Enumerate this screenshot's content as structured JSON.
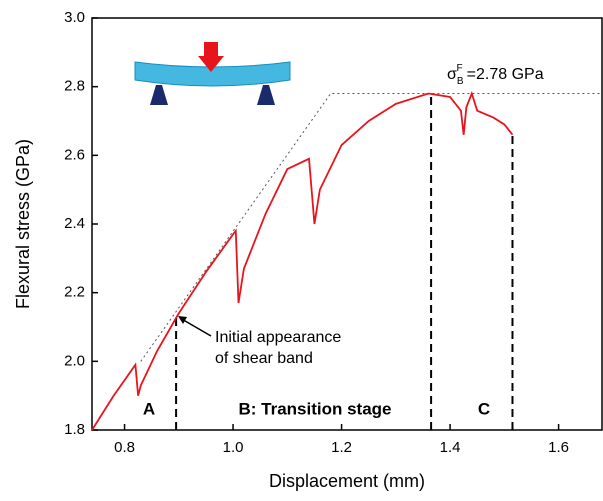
{
  "chart_data": {
    "type": "line",
    "xlabel": "Displacement (mm)",
    "ylabel": "Flexural stress (GPa)",
    "xlim": [
      0.74,
      1.68
    ],
    "ylim": [
      1.8,
      3.0
    ],
    "xticks": [
      {
        "value": 0.8,
        "label": "0.8"
      },
      {
        "value": 1.0,
        "label": "1.0"
      },
      {
        "value": 1.2,
        "label": "1.2"
      },
      {
        "value": 1.4,
        "label": "1.4"
      },
      {
        "value": 1.6,
        "label": "1.6"
      }
    ],
    "yticks": [
      {
        "value": 1.8,
        "label": "1.8"
      },
      {
        "value": 2.0,
        "label": "2.0"
      },
      {
        "value": 2.2,
        "label": "2.2"
      },
      {
        "value": 2.4,
        "label": "2.4"
      },
      {
        "value": 2.6,
        "label": "2.6"
      },
      {
        "value": 2.8,
        "label": "2.8"
      },
      {
        "value": 3.0,
        "label": "3.0"
      }
    ],
    "series": [
      {
        "color": "#e8141c",
        "x": [
          0.74,
          0.78,
          0.82,
          0.825,
          0.83,
          0.86,
          0.9,
          0.95,
          1.0,
          1.005,
          1.01,
          1.02,
          1.06,
          1.1,
          1.14,
          1.15,
          1.16,
          1.2,
          1.25,
          1.3,
          1.36,
          1.4,
          1.42,
          1.425,
          1.43,
          1.44,
          1.45,
          1.48,
          1.5,
          1.515
        ],
        "values": [
          1.8,
          1.9,
          1.99,
          1.9,
          1.93,
          2.03,
          2.14,
          2.26,
          2.37,
          2.38,
          2.17,
          2.27,
          2.43,
          2.56,
          2.59,
          2.4,
          2.5,
          2.63,
          2.7,
          2.75,
          2.78,
          2.77,
          2.73,
          2.66,
          2.74,
          2.78,
          2.73,
          2.71,
          2.69,
          2.66
        ]
      }
    ],
    "reference_line": {
      "x": [
        0.83,
        1.18,
        1.68
      ],
      "values": [
        2.0,
        2.78,
        2.78
      ]
    },
    "dashed_markers": [
      {
        "x": 0.895,
        "y": 2.13
      },
      {
        "x": 1.365,
        "y": 2.78
      },
      {
        "x": 1.515,
        "y": 2.66
      }
    ],
    "annotations": {
      "stage_a": "A",
      "stage_b": "B: Transition stage",
      "stage_c": "C",
      "shear_line1": "Initial appearance",
      "shear_line2": "of shear band",
      "sigma": "σ",
      "sigma_sub": "B",
      "sigma_sup": "F",
      "sigma_value": "=2.78 GPa"
    }
  }
}
